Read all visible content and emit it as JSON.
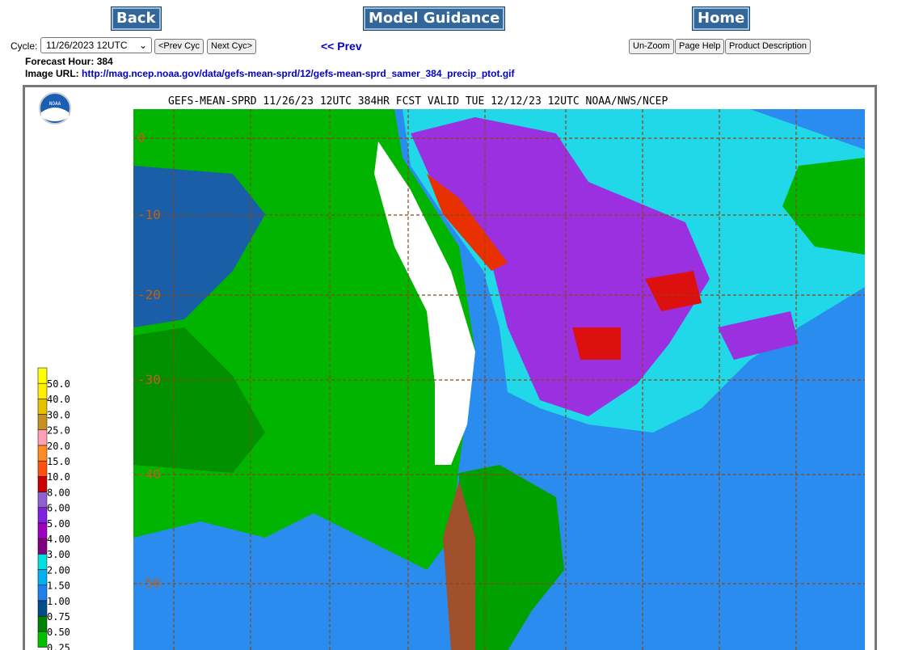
{
  "nav": {
    "back": "Back",
    "model_guidance": "Model Guidance",
    "home": "Home"
  },
  "controls": {
    "cycle_label": "Cycle:",
    "cycle_value": "11/26/2023 12UTC",
    "prev_cyc": "<Prev Cyc",
    "next_cyc": "Next Cyc>",
    "prev": "<< Prev",
    "unzoom": "Un-Zoom",
    "page_help": "Page Help",
    "product_description": "Product Description"
  },
  "info": {
    "forecast_hour_label": "Forecast Hour:",
    "forecast_hour": "384",
    "image_url_label": "Image URL:",
    "image_url": "http://mag.ncep.noaa.gov/data/gefs-mean-sprd/12/gefs-mean-sprd_samer_384_precip_ptot.gif"
  },
  "map": {
    "title": "GEFS-MEAN-SPRD 11/26/23 12UTC 384HR FCST VALID TUE 12/12/23 12UTC NOAA/NWS/NCEP",
    "logo": "NOAA",
    "lat_labels": [
      "0",
      "-10",
      "-20",
      "-30",
      "-40",
      "-50"
    ],
    "legend": [
      "50.0",
      "40.0",
      "30.0",
      "25.0",
      "20.0",
      "15.0",
      "10.0",
      "8.00",
      "6.00",
      "5.00",
      "4.00",
      "3.00",
      "2.00",
      "1.50",
      "1.00",
      "0.75",
      "0.50",
      "0.25"
    ]
  }
}
